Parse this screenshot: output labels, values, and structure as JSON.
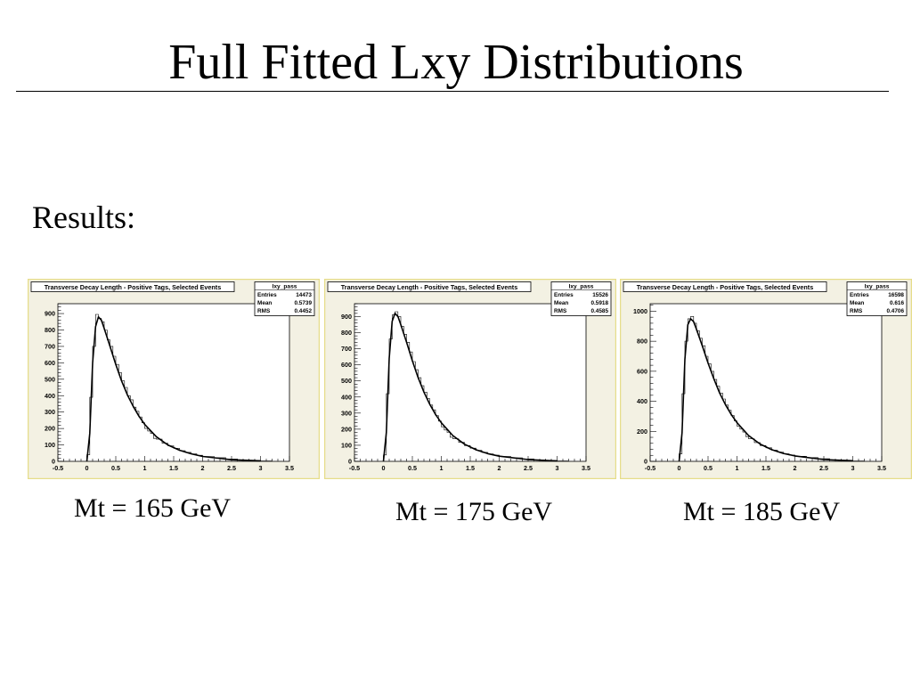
{
  "slide": {
    "title": "Full Fitted Lxy Distributions",
    "results_label": "Results:"
  },
  "colors": {
    "frame_border": "#e6dd8a",
    "frame_fill": "#f3f1e3",
    "plot_fill": "#ffffff",
    "histogram": "#000000",
    "fit_curve": "#000000"
  },
  "chart_data": [
    {
      "type": "line",
      "title": "Transverse Decay Length - Positive Tags, Selected Events",
      "caption": "Mt = 165 GeV",
      "stats": {
        "name": "lxy_pass",
        "rows": [
          {
            "label": "Entries",
            "value": "14473"
          },
          {
            "label": "Mean",
            "value": "0.5739"
          },
          {
            "label": "RMS",
            "value": "0.4452"
          }
        ]
      },
      "xlim": [
        -0.5,
        3.5
      ],
      "ylim": [
        0,
        960
      ],
      "xticks": [
        -0.5,
        0,
        0.5,
        1,
        1.5,
        2,
        2.5,
        3,
        3.5
      ],
      "xtick_labels": [
        "-0.5",
        "0",
        "0.5",
        "1",
        "1.5",
        "2",
        "2.5",
        "3",
        "3.5"
      ],
      "yticks": [
        0,
        100,
        200,
        300,
        400,
        500,
        600,
        700,
        800,
        900
      ],
      "ytick_labels": [
        "0",
        "100",
        "200",
        "300",
        "400",
        "500",
        "600",
        "700",
        "800",
        "900"
      ],
      "fit": {
        "x": [
          0,
          0.05,
          0.1,
          0.15,
          0.2,
          0.25,
          0.3,
          0.4,
          0.5,
          0.6,
          0.7,
          0.8,
          0.9,
          1.0,
          1.2,
          1.4,
          1.6,
          1.8,
          2.0,
          2.5,
          3.0
        ],
        "y": [
          0,
          170,
          600,
          820,
          880,
          860,
          810,
          700,
          590,
          490,
          405,
          335,
          275,
          225,
          150,
          100,
          68,
          46,
          30,
          10,
          3
        ]
      },
      "histogram": {
        "x": [
          0,
          0.05,
          0.1,
          0.15,
          0.2,
          0.25,
          0.3,
          0.35,
          0.4,
          0.45,
          0.5,
          0.55,
          0.6,
          0.65,
          0.7,
          0.75,
          0.8,
          0.85,
          0.9,
          0.95,
          1.0,
          1.05,
          1.1,
          1.15,
          1.2,
          1.3,
          1.4,
          1.5,
          1.6,
          1.7,
          1.8,
          1.9,
          2.0,
          2.2,
          2.4,
          2.6,
          2.8,
          3.0
        ],
        "y": [
          40,
          390,
          700,
          895,
          870,
          850,
          800,
          740,
          700,
          640,
          590,
          540,
          490,
          450,
          400,
          375,
          330,
          305,
          270,
          235,
          200,
          185,
          170,
          140,
          135,
          110,
          95,
          80,
          65,
          55,
          45,
          37,
          30,
          22,
          14,
          8,
          5,
          2
        ]
      }
    },
    {
      "type": "line",
      "title": "Transverse Decay Length - Positive Tags, Selected Events",
      "caption": "Mt = 175 GeV",
      "stats": {
        "name": "lxy_pass",
        "rows": [
          {
            "label": "Entries",
            "value": "15526"
          },
          {
            "label": "Mean",
            "value": "0.5918"
          },
          {
            "label": "RMS",
            "value": "0.4585"
          }
        ]
      },
      "xlim": [
        -0.5,
        3.5
      ],
      "ylim": [
        0,
        980
      ],
      "xticks": [
        -0.5,
        0,
        0.5,
        1,
        1.5,
        2,
        2.5,
        3,
        3.5
      ],
      "xtick_labels": [
        "-0.5",
        "0",
        "0.5",
        "1",
        "1.5",
        "2",
        "2.5",
        "3",
        "3.5"
      ],
      "yticks": [
        0,
        100,
        200,
        300,
        400,
        500,
        600,
        700,
        800,
        900
      ],
      "ytick_labels": [
        "0",
        "100",
        "200",
        "300",
        "400",
        "500",
        "600",
        "700",
        "800",
        "900"
      ],
      "fit": {
        "x": [
          0,
          0.05,
          0.1,
          0.15,
          0.2,
          0.25,
          0.3,
          0.4,
          0.5,
          0.6,
          0.7,
          0.8,
          0.9,
          1.0,
          1.2,
          1.4,
          1.6,
          1.8,
          2.0,
          2.5,
          3.0
        ],
        "y": [
          0,
          180,
          640,
          870,
          920,
          900,
          850,
          740,
          625,
          520,
          430,
          355,
          292,
          240,
          160,
          107,
          72,
          48,
          32,
          11,
          3
        ]
      },
      "histogram": {
        "x": [
          0,
          0.05,
          0.1,
          0.15,
          0.2,
          0.25,
          0.3,
          0.35,
          0.4,
          0.45,
          0.5,
          0.55,
          0.6,
          0.65,
          0.7,
          0.75,
          0.8,
          0.85,
          0.9,
          0.95,
          1.0,
          1.05,
          1.1,
          1.15,
          1.2,
          1.3,
          1.4,
          1.5,
          1.6,
          1.7,
          1.8,
          1.9,
          2.0,
          2.2,
          2.4,
          2.6,
          2.8,
          3.0
        ],
        "y": [
          40,
          420,
          760,
          910,
          930,
          900,
          840,
          790,
          740,
          680,
          620,
          570,
          520,
          470,
          430,
          390,
          350,
          320,
          285,
          250,
          215,
          195,
          180,
          150,
          140,
          118,
          98,
          82,
          68,
          56,
          46,
          38,
          30,
          22,
          15,
          8,
          5,
          2
        ]
      }
    },
    {
      "type": "line",
      "title": "Transverse Decay Length - Positive Tags, Selected Events",
      "caption": "Mt = 185 GeV",
      "stats": {
        "name": "lxy_pass",
        "rows": [
          {
            "label": "Entries",
            "value": "16598"
          },
          {
            "label": "Mean",
            "value": "0.616"
          },
          {
            "label": "RMS",
            "value": "0.4706"
          }
        ]
      },
      "xlim": [
        -0.5,
        3.5
      ],
      "ylim": [
        0,
        1050
      ],
      "xticks": [
        -0.5,
        0,
        0.5,
        1,
        1.5,
        2,
        2.5,
        3,
        3.5
      ],
      "xtick_labels": [
        "-0.5",
        "0",
        "0.5",
        "1",
        "1.5",
        "2",
        "2.5",
        "3",
        "3.5"
      ],
      "yticks": [
        0,
        200,
        400,
        600,
        800,
        1000
      ],
      "ytick_labels": [
        "0",
        "200",
        "400",
        "600",
        "800",
        "1000"
      ],
      "fit": {
        "x": [
          0,
          0.05,
          0.1,
          0.15,
          0.2,
          0.25,
          0.3,
          0.4,
          0.5,
          0.6,
          0.7,
          0.8,
          0.9,
          1.0,
          1.2,
          1.4,
          1.6,
          1.8,
          2.0,
          2.5,
          3.0
        ],
        "y": [
          0,
          190,
          680,
          910,
          950,
          930,
          880,
          770,
          655,
          550,
          455,
          378,
          312,
          258,
          172,
          115,
          78,
          53,
          36,
          12,
          4
        ]
      },
      "histogram": {
        "x": [
          0,
          0.05,
          0.1,
          0.15,
          0.2,
          0.25,
          0.3,
          0.35,
          0.4,
          0.45,
          0.5,
          0.55,
          0.6,
          0.65,
          0.7,
          0.75,
          0.8,
          0.85,
          0.9,
          0.95,
          1.0,
          1.05,
          1.1,
          1.15,
          1.2,
          1.3,
          1.4,
          1.5,
          1.6,
          1.7,
          1.8,
          1.9,
          2.0,
          2.2,
          2.4,
          2.6,
          2.8,
          3.0
        ],
        "y": [
          50,
          450,
          800,
          950,
          965,
          920,
          870,
          820,
          770,
          700,
          650,
          600,
          545,
          500,
          455,
          415,
          375,
          340,
          305,
          270,
          235,
          215,
          195,
          165,
          150,
          125,
          105,
          90,
          75,
          62,
          50,
          42,
          34,
          25,
          17,
          10,
          6,
          3
        ]
      }
    }
  ]
}
